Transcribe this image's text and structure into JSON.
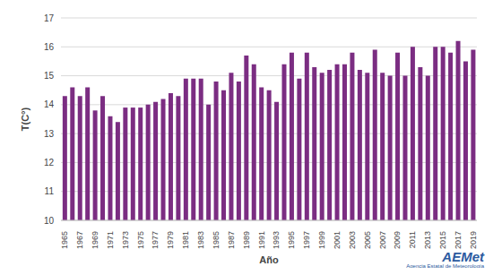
{
  "chart_data": {
    "type": "bar",
    "x_label": "Año",
    "y_label": "T(C°)",
    "annotations": [
      "AEMet",
      "Agencia Estatal de Meteorología"
    ],
    "categories": [
      "1965",
      null,
      "1967",
      null,
      "1969",
      null,
      "1971",
      null,
      "1973",
      null,
      "1975",
      null,
      "1977",
      null,
      "1979",
      null,
      "1981",
      null,
      "1983",
      null,
      "1985",
      null,
      "1987",
      null,
      "1989",
      null,
      "1991",
      null,
      "1993",
      null,
      "1995",
      null,
      "1997",
      null,
      "1999",
      null,
      "2001",
      null,
      "2003",
      null,
      "2005",
      null,
      "2007",
      null,
      "2009",
      null,
      "2011",
      null,
      "2013",
      null,
      "2015",
      null,
      "2017",
      null,
      "2019"
    ],
    "values": [
      14.3,
      14.6,
      14.3,
      14.6,
      13.8,
      14.3,
      13.6,
      13.4,
      13.9,
      13.9,
      13.9,
      14.0,
      14.1,
      14.2,
      14.4,
      14.3,
      14.9,
      14.9,
      14.9,
      14.0,
      14.8,
      14.5,
      15.1,
      14.8,
      15.7,
      15.4,
      14.6,
      14.5,
      14.1,
      15.4,
      15.8,
      14.9,
      15.8,
      15.3,
      15.1,
      15.2,
      15.4,
      15.4,
      15.8,
      15.2,
      15.1,
      15.9,
      15.1,
      15.0,
      15.8,
      15.0,
      16.0,
      15.3,
      15.0,
      16.0,
      16.0,
      15.8,
      16.2,
      15.5,
      15.9
    ],
    "color": "#7b2d82",
    "ylim": [
      10,
      17
    ],
    "yticks": [
      10,
      11,
      12,
      13,
      14,
      15,
      16,
      17
    ],
    "grid": true
  }
}
